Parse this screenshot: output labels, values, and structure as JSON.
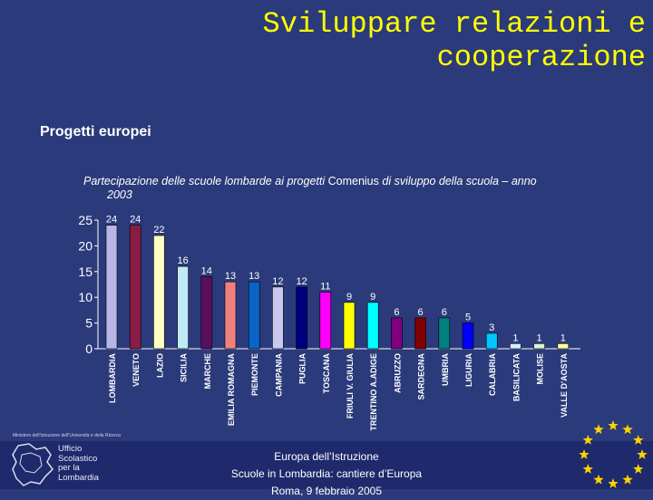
{
  "slide": {
    "title": "Sviluppare relazioni e cooperazione",
    "section": "Progetti europei",
    "caption_pre": "Partecipazione delle scuole lombarde ai progetti ",
    "caption_highlight": "Comenius",
    "caption_post": " di sviluppo della scuola – anno",
    "caption_year": "2003"
  },
  "chart_data": {
    "type": "bar",
    "categories": [
      "LOMBARDIA",
      "VENETO",
      "LAZIO",
      "SICILIA",
      "MARCHE",
      "EMILIA ROMAGNA",
      "PIEMONTE",
      "CAMPANIA",
      "PUGLIA",
      "TOSCANA",
      "FRIULI V. GIULIA",
      "TRENTINO A.ADIGE",
      "ABRUZZO",
      "SARDEGNA",
      "UMBRIA",
      "LIGURIA",
      "CALABRIA",
      "BASILICATA",
      "MOLISE",
      "VALLE D'AOSTA"
    ],
    "values": [
      24,
      24,
      22,
      16,
      14,
      13,
      13,
      12,
      12,
      11,
      9,
      9,
      6,
      6,
      6,
      5,
      3,
      1,
      1,
      1
    ],
    "colors": [
      "#b8b6e6",
      "#8b1c44",
      "#ffffc4",
      "#bfe9f4",
      "#5a0f5e",
      "#f08080",
      "#0a64c8",
      "#c8c8f0",
      "#000080",
      "#ff00ff",
      "#ffff00",
      "#00ffff",
      "#800080",
      "#800000",
      "#008080",
      "#0000ff",
      "#00c8ff",
      "#d2f4ff",
      "#d6f6d8",
      "#ffff9e"
    ],
    "yticks": [
      0,
      5,
      10,
      15,
      20,
      25
    ],
    "ylim": [
      0,
      25
    ],
    "data_labels": true,
    "grid": false
  },
  "footer": {
    "line1": "Europa dell’Istruzione",
    "line2": "Scuole in Lombardia: cantiere d’Europa",
    "line3": "Roma, 9 febbraio 2005",
    "ministry": "Ministero dell'Istruzione dell'Università e della Ricerca",
    "office_lines": [
      "Ufficio",
      "Scolastico",
      "per la",
      "Lombardia"
    ]
  },
  "icons": {
    "map": "lombardia-map-icon",
    "stars": "eu-stars-icon"
  },
  "colors": {
    "background": "#2b3a7a",
    "title": "#ffff00",
    "footer_bar": "#1e2a6b"
  }
}
